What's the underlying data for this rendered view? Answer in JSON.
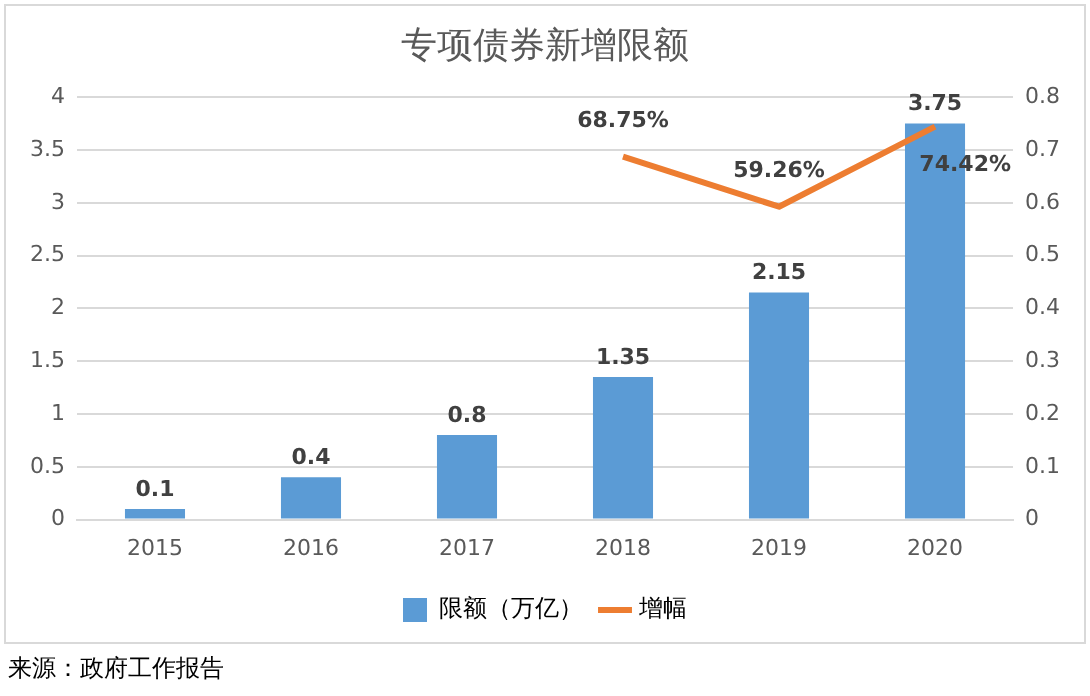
{
  "chart_data": {
    "type": "bar",
    "title": "专项债券新增限额",
    "categories": [
      "2015",
      "2016",
      "2017",
      "2018",
      "2019",
      "2020"
    ],
    "series": [
      {
        "name": "限额（万亿）",
        "color": "#5b9bd5",
        "values": [
          0.1,
          0.4,
          0.8,
          1.35,
          2.15,
          3.75
        ]
      },
      {
        "name": "增幅",
        "type": "line",
        "axis": "y2",
        "color": "#ed7d31",
        "values": [
          null,
          null,
          null,
          0.6875,
          0.5926,
          0.7442
        ],
        "value_labels": [
          null,
          null,
          null,
          "68.75%",
          "59.26%",
          "74.42%"
        ]
      }
    ],
    "ylim": [
      0,
      4
    ],
    "yticks": [
      0,
      0.5,
      1,
      1.5,
      2,
      2.5,
      3,
      3.5,
      4
    ],
    "y2lim": [
      0,
      0.8
    ],
    "y2ticks": [
      0,
      0.1,
      0.2,
      0.3,
      0.4,
      0.5,
      0.6,
      0.7,
      0.8
    ],
    "grid": "y",
    "legend": "bottom",
    "data_labels": true,
    "annotations": [
      "来源：政府工作报告"
    ]
  }
}
